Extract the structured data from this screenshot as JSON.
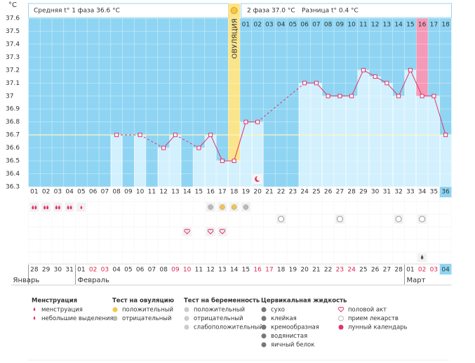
{
  "chart_data": {
    "type": "line",
    "y_unit": "°C",
    "header_left": "Средняя t° 1 фаза 36.6 °C",
    "header_phase2": "2 фаза 37.0 °C",
    "header_diff": "Разница t° 0.4 °C",
    "ovulation_label": "ОВУЛЯЦИЯ",
    "categories": [
      "01",
      "02",
      "03",
      "04",
      "05",
      "06",
      "07",
      "08",
      "09",
      "10",
      "11",
      "12",
      "13",
      "14",
      "15",
      "16",
      "17",
      "18",
      "19",
      "20",
      "21",
      "22",
      "23",
      "24",
      "25",
      "26",
      "27",
      "28",
      "29",
      "30",
      "31",
      "32",
      "33",
      "34",
      "35",
      "36"
    ],
    "phase2_days": [
      "01",
      "02",
      "03",
      "04",
      "05",
      "06",
      "07",
      "08",
      "09",
      "10",
      "11",
      "12",
      "13",
      "14",
      "15",
      "16",
      "17",
      "18"
    ],
    "values": [
      null,
      null,
      null,
      null,
      null,
      null,
      null,
      36.7,
      null,
      36.7,
      null,
      36.6,
      36.7,
      null,
      36.6,
      36.7,
      36.5,
      36.5,
      36.8,
      36.8,
      null,
      null,
      null,
      37.1,
      37.1,
      37.0,
      37.0,
      37.0,
      37.2,
      37.15,
      37.1,
      37.0,
      37.2,
      37.0,
      37.0,
      36.7
    ],
    "color": "#e0336a",
    "ylim": [
      36.3,
      37.6
    ],
    "yticks": [
      36.3,
      36.4,
      36.5,
      36.6,
      36.7,
      36.8,
      36.9,
      37,
      37.1,
      37.2,
      37.3,
      37.4,
      37.5,
      37.6
    ],
    "coverline": 36.7,
    "dates": [
      "28",
      "29",
      "30",
      "31",
      "01",
      "02",
      "03",
      "04",
      "05",
      "06",
      "07",
      "08",
      "09",
      "10",
      "11",
      "12",
      "13",
      "14",
      "15",
      "16",
      "17",
      "18",
      "19",
      "20",
      "21",
      "22",
      "23",
      "24",
      "25",
      "26",
      "27",
      "28",
      "01",
      "02",
      "03",
      "04"
    ],
    "date_colors": [
      "#333",
      "#333",
      "#333",
      "#333",
      "#333",
      "#e0244f",
      "#e0244f",
      "#333",
      "#333",
      "#333",
      "#333",
      "#333",
      "#e0244f",
      "#e0244f",
      "#333",
      "#333",
      "#333",
      "#333",
      "#333",
      "#e0244f",
      "#e0244f",
      "#333",
      "#333",
      "#333",
      "#333",
      "#333",
      "#e0244f",
      "#e0244f",
      "#333",
      "#333",
      "#333",
      "#333",
      "#333",
      "#e0244f",
      "#e0244f",
      "#333"
    ],
    "months": [
      "Январь",
      "Февраль",
      "Март"
    ],
    "legend": [
      {
        "title": "Менструация",
        "items": [
          "менструация",
          "небольшие выделения"
        ]
      },
      {
        "title": "Тест на овуляцию",
        "items": [
          "положительный",
          "отрицательный"
        ]
      },
      {
        "title": "Тест на беременность",
        "items": [
          "положительный",
          "отрицательный",
          "слабоположительный"
        ]
      },
      {
        "title": "Цервикальная жидкость",
        "items": [
          "сухо",
          "клейкая",
          "кремообразная",
          "водянистая",
          "яичный белок"
        ]
      },
      {
        "items": [
          "половой акт",
          "прием лекарств",
          "лунный календарь"
        ]
      }
    ]
  }
}
